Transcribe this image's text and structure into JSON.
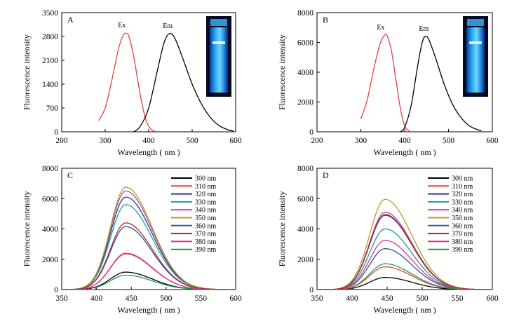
{
  "chart_data": [
    {
      "panel": "A",
      "type": "line",
      "xlabel": "Wavelength ( nm )",
      "ylabel": "Fluorescence intensity",
      "xlim": [
        200,
        600
      ],
      "ylim": [
        0,
        3500
      ],
      "xticks": [
        200,
        300,
        400,
        500,
        600
      ],
      "yticks": [
        0,
        700,
        1400,
        2100,
        2800,
        3500
      ],
      "grid": false,
      "inset_image": "cuvette-blue-fluorescence",
      "series": [
        {
          "name": "Ex",
          "color": "#e8413c",
          "x": [
            285,
            300,
            315,
            330,
            340,
            348,
            355,
            365,
            375,
            385,
            395,
            405,
            415
          ],
          "y": [
            330,
            700,
            1500,
            2400,
            2800,
            2900,
            2780,
            2250,
            1500,
            800,
            300,
            80,
            10
          ]
        },
        {
          "name": "Em",
          "color": "#000000",
          "x": [
            365,
            380,
            400,
            420,
            435,
            447,
            460,
            480,
            500,
            520,
            540,
            560,
            580,
            595
          ],
          "y": [
            0,
            150,
            700,
            1800,
            2600,
            2880,
            2750,
            2100,
            1400,
            850,
            450,
            200,
            70,
            20
          ]
        }
      ],
      "annotations": [
        "Ex",
        "Em"
      ]
    },
    {
      "panel": "B",
      "type": "line",
      "xlabel": "Wavelength ( nm )",
      "ylabel": "Fluorescence intensity",
      "xlim": [
        200,
        600
      ],
      "ylim": [
        0,
        8000
      ],
      "xticks": [
        200,
        300,
        400,
        500,
        600
      ],
      "yticks": [
        0,
        2000,
        4000,
        6000,
        8000
      ],
      "grid": false,
      "inset_image": "cuvette-blue-fluorescence",
      "series": [
        {
          "name": "Ex",
          "color": "#e8413c",
          "x": [
            300,
            315,
            330,
            345,
            355,
            360,
            370,
            380,
            390,
            400,
            410
          ],
          "y": [
            850,
            2200,
            4300,
            6000,
            6500,
            6450,
            5400,
            3500,
            1600,
            400,
            50
          ]
        },
        {
          "name": "Em",
          "color": "#000000",
          "x": [
            390,
            400,
            415,
            430,
            440,
            447,
            455,
            470,
            490,
            510,
            530,
            550,
            575
          ],
          "y": [
            0,
            300,
            1800,
            4500,
            6000,
            6400,
            6200,
            5000,
            3200,
            1800,
            900,
            350,
            60
          ]
        }
      ],
      "annotations": [
        "Ex",
        "Em"
      ]
    },
    {
      "panel": "C",
      "type": "line",
      "xlabel": "Wavelength ( nm )",
      "ylabel": "Fluorescence intensity",
      "xlim": [
        350,
        600
      ],
      "ylim": [
        0,
        8000
      ],
      "xticks": [
        350,
        400,
        450,
        500,
        550,
        600
      ],
      "yticks": [
        0,
        2000,
        4000,
        6000,
        8000
      ],
      "grid": false,
      "legend_position": "top-right",
      "peak_x": 442,
      "series": [
        {
          "name": "300 nm",
          "color": "#000000",
          "peak": 1150,
          "start": 355
        },
        {
          "name": "310 nm",
          "color": "#e8413c",
          "peak": 2400,
          "start": 355
        },
        {
          "name": "320 nm",
          "color": "#2d3a8c",
          "peak": 6100,
          "start": 355
        },
        {
          "name": "330 nm",
          "color": "#1f9e9a",
          "peak": 5600,
          "start": 355
        },
        {
          "name": "340 nm",
          "color": "#cc3fa6",
          "peak": 6500,
          "start": 355
        },
        {
          "name": "350 nm",
          "color": "#a6a61c",
          "peak": 6750,
          "start": 355
        },
        {
          "name": "360 nm",
          "color": "#3b4ba8",
          "peak": 4150,
          "start": 370
        },
        {
          "name": "370 nm",
          "color": "#a52a2a",
          "peak": 4400,
          "start": 380
        },
        {
          "name": "380 nm",
          "color": "#d63a8a",
          "peak": 2350,
          "start": 390
        },
        {
          "name": "390 nm",
          "color": "#1e9a4a",
          "peak": 950,
          "start": 400
        }
      ]
    },
    {
      "panel": "D",
      "type": "line",
      "xlabel": "Wavelength ( nm )",
      "ylabel": "Fluorescence intensity",
      "xlim": [
        350,
        600
      ],
      "ylim": [
        0,
        8000
      ],
      "xticks": [
        350,
        400,
        450,
        500,
        550,
        600
      ],
      "yticks": [
        0,
        2000,
        4000,
        6000,
        8000
      ],
      "grid": false,
      "legend_position": "top-right",
      "peak_x": 447,
      "series": [
        {
          "name": "300 nm",
          "color": "#000000",
          "peak": 800,
          "start": 355
        },
        {
          "name": "310 nm",
          "color": "#e8413c",
          "peak": 1500,
          "start": 355
        },
        {
          "name": "320 nm",
          "color": "#2d3a8c",
          "peak": 4900,
          "start": 355
        },
        {
          "name": "330 nm",
          "color": "#1f9e9a",
          "peak": 4000,
          "start": 355
        },
        {
          "name": "340 nm",
          "color": "#cc3fa6",
          "peak": 5100,
          "start": 355
        },
        {
          "name": "350 nm",
          "color": "#a6a61c",
          "peak": 5950,
          "start": 355
        },
        {
          "name": "360 nm",
          "color": "#3b4ba8",
          "peak": 2700,
          "start": 370
        },
        {
          "name": "370 nm",
          "color": "#a52a2a",
          "peak": 4950,
          "start": 380
        },
        {
          "name": "380 nm",
          "color": "#d63a8a",
          "peak": 3250,
          "start": 390
        },
        {
          "name": "390 nm",
          "color": "#1e9a4a",
          "peak": 1700,
          "start": 400
        }
      ]
    }
  ]
}
